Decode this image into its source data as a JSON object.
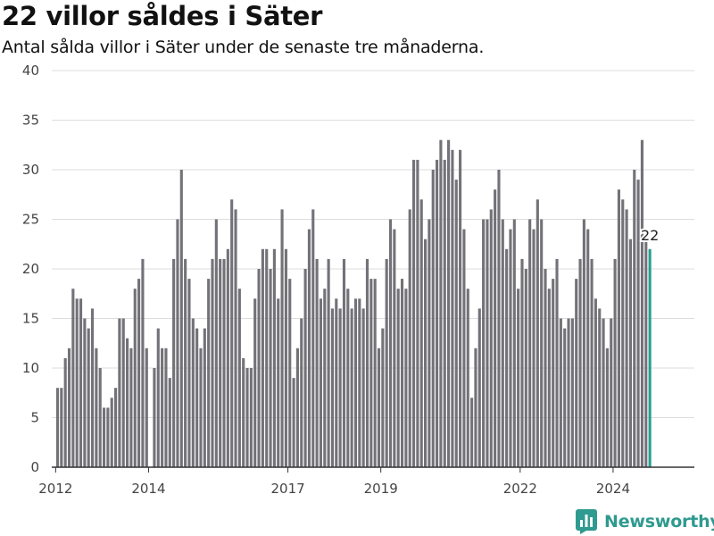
{
  "header": {
    "title": "22 villor såldes i Säter",
    "subtitle": "Antal sålda villor i Säter under de senaste tre månaderna."
  },
  "footer": {
    "brand": "Newsworthy",
    "brand_icon": "newsworthy-logo-icon"
  },
  "colors": {
    "bar": "#737278",
    "highlight": "#2a9d93",
    "grid": "#dddddd",
    "axis": "#333333",
    "brand": "#2f9a8f"
  },
  "chart_data": {
    "type": "bar",
    "title": "22 villor såldes i Säter",
    "subtitle": "Antal sålda villor i Säter under de senaste tre månaderna.",
    "xlabel": "",
    "ylabel": "",
    "ylim": [
      0,
      40
    ],
    "yticks": [
      0,
      5,
      10,
      15,
      20,
      25,
      30,
      35,
      40
    ],
    "xticks": [
      "2012",
      "2014",
      "2017",
      "2019",
      "2022",
      "2024"
    ],
    "xlim": [
      "2011-12",
      "2025-09"
    ],
    "grid": true,
    "start_month": "2012-01",
    "highlight_last": true,
    "last_value_label": "22",
    "values": [
      8,
      8,
      11,
      12,
      18,
      17,
      17,
      15,
      14,
      16,
      12,
      10,
      6,
      6,
      7,
      8,
      15,
      15,
      13,
      12,
      18,
      19,
      21,
      12,
      0,
      10,
      14,
      12,
      12,
      9,
      21,
      25,
      30,
      21,
      19,
      15,
      14,
      12,
      14,
      19,
      21,
      25,
      21,
      21,
      22,
      27,
      26,
      18,
      11,
      10,
      10,
      17,
      20,
      22,
      22,
      20,
      22,
      17,
      26,
      22,
      19,
      9,
      12,
      15,
      20,
      24,
      26,
      21,
      17,
      18,
      21,
      16,
      17,
      16,
      21,
      18,
      16,
      17,
      17,
      16,
      21,
      19,
      19,
      12,
      14,
      21,
      25,
      24,
      18,
      19,
      18,
      26,
      31,
      31,
      27,
      23,
      25,
      30,
      31,
      33,
      31,
      33,
      32,
      29,
      32,
      24,
      18,
      7,
      12,
      16,
      25,
      25,
      26,
      28,
      30,
      25,
      22,
      24,
      25,
      18,
      21,
      20,
      25,
      24,
      27,
      25,
      20,
      18,
      19,
      21,
      15,
      14,
      15,
      15,
      19,
      21,
      25,
      24,
      21,
      17,
      16,
      15,
      12,
      15,
      21,
      28,
      27,
      26,
      23,
      30,
      29,
      33,
      23,
      22
    ]
  }
}
